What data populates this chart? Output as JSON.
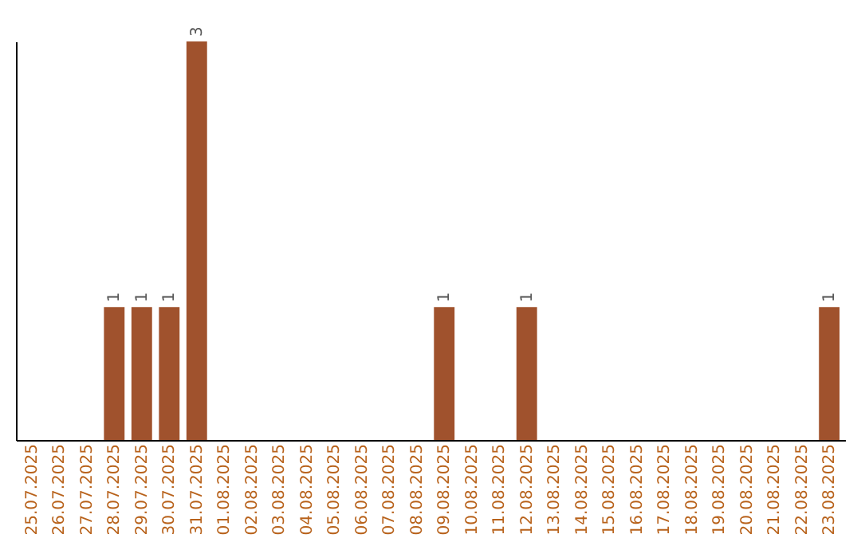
{
  "chart_data": {
    "type": "bar",
    "categories": [
      "25.07.2025",
      "26.07.2025",
      "27.07.2025",
      "28.07.2025",
      "29.07.2025",
      "30.07.2025",
      "31.07.2025",
      "01.08.2025",
      "02.08.2025",
      "03.08.2025",
      "04.08.2025",
      "05.08.2025",
      "06.08.2025",
      "07.08.2025",
      "08.08.2025",
      "09.08.2025",
      "10.08.2025",
      "11.08.2025",
      "12.08.2025",
      "13.08.2025",
      "14.08.2025",
      "15.08.2025",
      "16.08.2025",
      "17.08.2025",
      "18.08.2025",
      "19.08.2025",
      "20.08.2025",
      "21.08.2025",
      "22.08.2025",
      "23.08.2025"
    ],
    "values": [
      0,
      0,
      0,
      1,
      1,
      1,
      3,
      0,
      0,
      0,
      0,
      0,
      0,
      0,
      0,
      1,
      0,
      0,
      1,
      0,
      0,
      0,
      0,
      0,
      0,
      0,
      0,
      0,
      0,
      1
    ],
    "value_labels": [
      null,
      null,
      null,
      "1",
      "1",
      "1",
      "3",
      null,
      null,
      null,
      null,
      null,
      null,
      null,
      null,
      "1",
      null,
      null,
      "1",
      null,
      null,
      null,
      null,
      null,
      null,
      null,
      null,
      null,
      null,
      "1"
    ],
    "color": "#a0522d",
    "tick_labels": "x",
    "grid": false
  }
}
